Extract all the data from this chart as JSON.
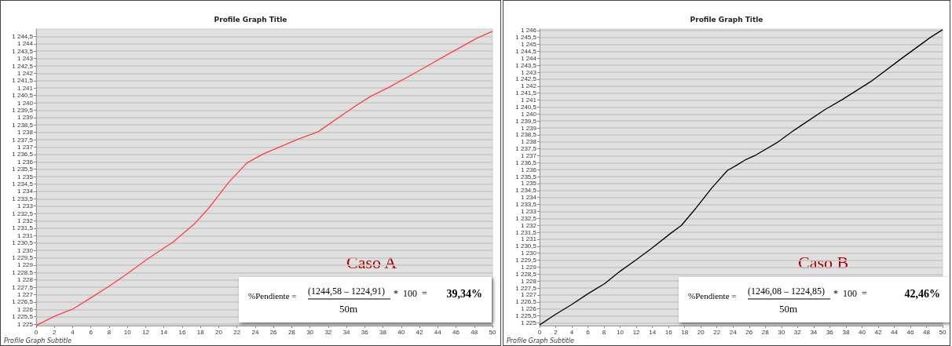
{
  "chart_data": [
    {
      "type": "line",
      "title": "Profile Graph Title",
      "subtitle": "Profile Graph Subtitle",
      "annotations": [
        "Caso A",
        "%Pendiente =",
        "(1244,58 – 1224,91)",
        "*  100  =",
        "39,34%",
        "50m"
      ],
      "x": [
        0,
        2,
        4,
        6,
        8,
        10,
        12,
        13.5,
        15,
        17.4,
        18.9,
        21.1,
        23.1,
        24.9,
        28.6,
        30.9,
        34.8,
        36.6,
        38.6,
        41.7,
        45.2,
        48.3,
        50
      ],
      "series": [
        {
          "color": "#ff4040",
          "values": [
            1224.91,
            1225.53,
            1226.02,
            1226.78,
            1227.57,
            1228.42,
            1229.33,
            1229.95,
            1230.56,
            1231.83,
            1232.85,
            1234.61,
            1235.93,
            1236.54,
            1237.51,
            1238.04,
            1239.71,
            1240.42,
            1241.03,
            1242.09,
            1243.32,
            1244.38,
            1244.85
          ]
        }
      ],
      "xlim": [
        0,
        50
      ],
      "xticks": [
        0,
        2,
        4,
        6,
        8,
        10,
        12,
        14,
        16,
        18,
        20,
        22,
        24,
        26,
        28,
        30,
        32,
        34,
        36,
        38,
        40,
        42,
        44,
        46,
        48,
        50
      ],
      "ylim": [
        1224.9,
        1245
      ],
      "yticks": [
        {
          "value": 1225,
          "label": "1 225"
        },
        {
          "value": 1225.5,
          "label": "1 225,5"
        },
        {
          "value": 1226,
          "label": "1 226"
        },
        {
          "value": 1226.5,
          "label": "1 226,5"
        },
        {
          "value": 1227,
          "label": "1 227"
        },
        {
          "value": 1227.5,
          "label": "1 227,5"
        },
        {
          "value": 1228,
          "label": "1 228"
        },
        {
          "value": 1228.5,
          "label": "1 228,5"
        },
        {
          "value": 1229,
          "label": "1 229"
        },
        {
          "value": 1229.5,
          "label": "1 229,5"
        },
        {
          "value": 1230,
          "label": "1 230"
        },
        {
          "value": 1230.5,
          "label": "1 230,5"
        },
        {
          "value": 1231,
          "label": "1 231"
        },
        {
          "value": 1231.5,
          "label": "1 231,5"
        },
        {
          "value": 1232,
          "label": "1 232"
        },
        {
          "value": 1232.5,
          "label": "1 232,5"
        },
        {
          "value": 1233,
          "label": "1 233"
        },
        {
          "value": 1233.5,
          "label": "1 233,5"
        },
        {
          "value": 1234,
          "label": "1 234"
        },
        {
          "value": 1234.5,
          "label": "1 234,5"
        },
        {
          "value": 1235,
          "label": "1 235"
        },
        {
          "value": 1235.5,
          "label": "1 235,5"
        },
        {
          "value": 1236,
          "label": "1 236"
        },
        {
          "value": 1236.5,
          "label": "1 236,5"
        },
        {
          "value": 1237,
          "label": "1 237"
        },
        {
          "value": 1237.5,
          "label": "1 237,5"
        },
        {
          "value": 1238,
          "label": "1 238"
        },
        {
          "value": 1238.5,
          "label": "1 238,5"
        },
        {
          "value": 1239,
          "label": "1 239"
        },
        {
          "value": 1239.5,
          "label": "1 239,5"
        },
        {
          "value": 1240,
          "label": "1 240"
        },
        {
          "value": 1240.5,
          "label": "1 240,5"
        },
        {
          "value": 1241,
          "label": "1 241"
        },
        {
          "value": 1241.5,
          "label": "1 241,5"
        },
        {
          "value": 1242,
          "label": "1 242"
        },
        {
          "value": 1242.5,
          "label": "1 242,5"
        },
        {
          "value": 1243,
          "label": "1 243"
        },
        {
          "value": 1243.5,
          "label": "1 243,5"
        },
        {
          "value": 1244,
          "label": "1 244"
        },
        {
          "value": 1244.5,
          "label": "1 244,5"
        }
      ],
      "grid": "y",
      "marker": "none"
    },
    {
      "type": "line",
      "title": "Profile Graph Title",
      "subtitle": "Profile Graph Subtitle",
      "annotations": [
        "Caso B",
        "%Pendiente =",
        "(1246,08 – 1224,85)",
        "*  100  =",
        "42,46%",
        "50m"
      ],
      "x": [
        0,
        2,
        4,
        6,
        8.1,
        10,
        12,
        14,
        16.2,
        17.6,
        19.4,
        21.4,
        23.3,
        24.4,
        25.6,
        26.8,
        29.4,
        31.6,
        35.4,
        37.6,
        41.1,
        44.9,
        48.5,
        50
      ],
      "series": [
        {
          "color": "#000000",
          "values": [
            1224.85,
            1225.62,
            1226.32,
            1227.09,
            1227.83,
            1228.71,
            1229.53,
            1230.39,
            1231.4,
            1232,
            1233.24,
            1234.71,
            1235.94,
            1236.3,
            1236.73,
            1237.04,
            1237.92,
            1238.84,
            1240.31,
            1241.05,
            1242.33,
            1243.98,
            1245.5,
            1246.05
          ]
        }
      ],
      "xlim": [
        0,
        50
      ],
      "xticks": [
        0,
        2,
        4,
        6,
        8,
        10,
        12,
        14,
        16,
        18,
        20,
        22,
        24,
        26,
        28,
        30,
        32,
        34,
        36,
        38,
        40,
        42,
        44,
        46,
        48,
        50
      ],
      "ylim": [
        1224.8,
        1246.1
      ],
      "yticks": [
        {
          "value": 1225,
          "label": "1 225"
        },
        {
          "value": 1225.5,
          "label": "1 225,5"
        },
        {
          "value": 1226,
          "label": "1 226"
        },
        {
          "value": 1226.5,
          "label": "1 226,5"
        },
        {
          "value": 1227,
          "label": "1 227"
        },
        {
          "value": 1227.5,
          "label": "1 227,5"
        },
        {
          "value": 1228,
          "label": "1 228"
        },
        {
          "value": 1228.5,
          "label": "1 228,5"
        },
        {
          "value": 1229,
          "label": "1 229"
        },
        {
          "value": 1229.5,
          "label": "1 229,5"
        },
        {
          "value": 1230,
          "label": "1 230"
        },
        {
          "value": 1230.5,
          "label": "1 230,5"
        },
        {
          "value": 1231,
          "label": "1 231"
        },
        {
          "value": 1231.5,
          "label": "1 231,5"
        },
        {
          "value": 1232,
          "label": "1 232"
        },
        {
          "value": 1232.5,
          "label": "1 232,5"
        },
        {
          "value": 1233,
          "label": "1 233"
        },
        {
          "value": 1233.5,
          "label": "1 233,5"
        },
        {
          "value": 1234,
          "label": "1 234"
        },
        {
          "value": 1234.5,
          "label": "1 234,5"
        },
        {
          "value": 1235,
          "label": "1 235"
        },
        {
          "value": 1235.5,
          "label": "1 235,5"
        },
        {
          "value": 1236,
          "label": "1 236"
        },
        {
          "value": 1236.5,
          "label": "1 236,5"
        },
        {
          "value": 1237,
          "label": "1 237"
        },
        {
          "value": 1237.5,
          "label": "1 237,5"
        },
        {
          "value": 1238,
          "label": "1 238"
        },
        {
          "value": 1238.5,
          "label": "1 238,5"
        },
        {
          "value": 1239,
          "label": "1 239"
        },
        {
          "value": 1239.5,
          "label": "1 239,5"
        },
        {
          "value": 1240,
          "label": "1 240"
        },
        {
          "value": 1240.5,
          "label": "1 240,5"
        },
        {
          "value": 1241,
          "label": "1 241"
        },
        {
          "value": 1241.5,
          "label": "1 241,5"
        },
        {
          "value": 1242,
          "label": "1 242"
        },
        {
          "value": 1242.5,
          "label": "1 242,5"
        },
        {
          "value": 1243,
          "label": "1 243"
        },
        {
          "value": 1243.5,
          "label": "1 243,5"
        },
        {
          "value": 1244,
          "label": "1 244"
        },
        {
          "value": 1244.5,
          "label": "1 244,5"
        },
        {
          "value": 1245,
          "label": "1 245"
        },
        {
          "value": 1245.5,
          "label": "1 245,5"
        },
        {
          "value": 1246,
          "label": "1 246"
        }
      ],
      "grid": "y",
      "marker": "none"
    }
  ]
}
